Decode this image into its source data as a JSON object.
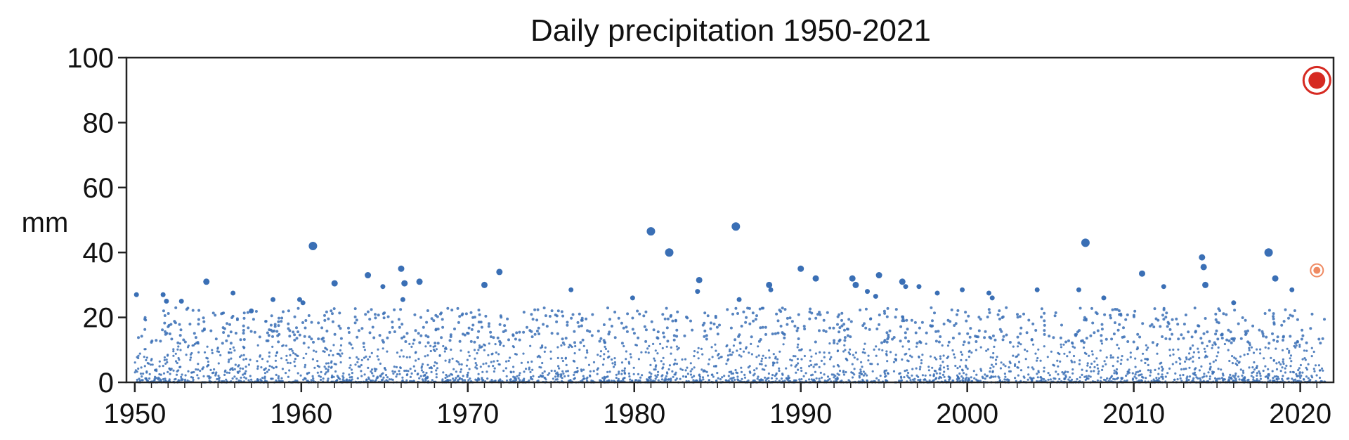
{
  "chart_data": {
    "type": "scatter",
    "title": "Daily precipitation 1950-2021",
    "xlabel": "",
    "ylabel": "mm",
    "xlim": [
      1949.5,
      2022.0
    ],
    "ylim": [
      0,
      100
    ],
    "x_ticks": [
      1950,
      1960,
      1970,
      1980,
      1990,
      2000,
      2010,
      2020
    ],
    "x_tick_labels": [
      "1950",
      "1960",
      "1970",
      "1980",
      "1990",
      "2000",
      "2010",
      "2020"
    ],
    "y_ticks": [
      0,
      20,
      40,
      60,
      80,
      100
    ],
    "y_tick_labels": [
      "0",
      "20",
      "40",
      "60",
      "80",
      "100"
    ],
    "grid": false,
    "legend": "none",
    "colors": {
      "points": "#3a6fb5",
      "highlight_max": "#d62a22",
      "highlight_second": "#ef8a62"
    },
    "series": [
      {
        "values_note": "",
        "points": [
          {
            "x": 1950.1,
            "y": 27
          },
          {
            "x": 1951.7,
            "y": 27
          },
          {
            "x": 1951.9,
            "y": 25
          },
          {
            "x": 1952.8,
            "y": 25
          },
          {
            "x": 1954.3,
            "y": 31
          },
          {
            "x": 1955.9,
            "y": 27.5
          },
          {
            "x": 1957.0,
            "y": 22
          },
          {
            "x": 1958.3,
            "y": 25.5
          },
          {
            "x": 1959.9,
            "y": 25.5
          },
          {
            "x": 1960.1,
            "y": 24.5
          },
          {
            "x": 1960.7,
            "y": 42
          },
          {
            "x": 1962.0,
            "y": 30.5
          },
          {
            "x": 1964.0,
            "y": 33
          },
          {
            "x": 1964.9,
            "y": 29.5
          },
          {
            "x": 1966.0,
            "y": 35
          },
          {
            "x": 1966.2,
            "y": 30.5
          },
          {
            "x": 1967.1,
            "y": 31
          },
          {
            "x": 1966.1,
            "y": 25.5
          },
          {
            "x": 1971.0,
            "y": 30
          },
          {
            "x": 1971.9,
            "y": 34
          },
          {
            "x": 1976.2,
            "y": 28.5
          },
          {
            "x": 1979.9,
            "y": 26
          },
          {
            "x": 1981.0,
            "y": 46.5
          },
          {
            "x": 1982.1,
            "y": 40
          },
          {
            "x": 1983.9,
            "y": 31.5
          },
          {
            "x": 1983.8,
            "y": 28
          },
          {
            "x": 1986.1,
            "y": 48
          },
          {
            "x": 1986.3,
            "y": 25.5
          },
          {
            "x": 1988.1,
            "y": 30
          },
          {
            "x": 1988.2,
            "y": 28.5
          },
          {
            "x": 1990.0,
            "y": 35
          },
          {
            "x": 1990.9,
            "y": 32
          },
          {
            "x": 1993.1,
            "y": 32
          },
          {
            "x": 1993.3,
            "y": 30
          },
          {
            "x": 1994.0,
            "y": 28
          },
          {
            "x": 1994.7,
            "y": 33
          },
          {
            "x": 1994.5,
            "y": 26.5
          },
          {
            "x": 1996.1,
            "y": 31
          },
          {
            "x": 1996.3,
            "y": 29.5
          },
          {
            "x": 1997.1,
            "y": 29.5
          },
          {
            "x": 1998.2,
            "y": 27.5
          },
          {
            "x": 1999.7,
            "y": 28.5
          },
          {
            "x": 2001.3,
            "y": 27.5
          },
          {
            "x": 2001.5,
            "y": 26
          },
          {
            "x": 2004.2,
            "y": 28.5
          },
          {
            "x": 2006.7,
            "y": 28.5
          },
          {
            "x": 2007.1,
            "y": 43
          },
          {
            "x": 2008.2,
            "y": 26
          },
          {
            "x": 2010.5,
            "y": 33.5
          },
          {
            "x": 2011.8,
            "y": 29.5
          },
          {
            "x": 2014.1,
            "y": 38.5
          },
          {
            "x": 2014.2,
            "y": 35.5
          },
          {
            "x": 2014.3,
            "y": 30
          },
          {
            "x": 2016.0,
            "y": 24.5
          },
          {
            "x": 2018.1,
            "y": 40
          },
          {
            "x": 2018.5,
            "y": 32
          },
          {
            "x": 2019.5,
            "y": 28.5
          }
        ]
      },
      {
        "values_note": "",
        "points": [
          {
            "x": 2021.0,
            "y": 93
          }
        ]
      },
      {
        "values_note": "",
        "points": [
          {
            "x": 2021.0,
            "y": 34.5
          }
        ]
      }
    ],
    "background_distribution": {
      "year_start": 1950,
      "year_end": 2021.5,
      "count": 3600,
      "min": 0,
      "max": 23,
      "seed": 12345
    }
  }
}
